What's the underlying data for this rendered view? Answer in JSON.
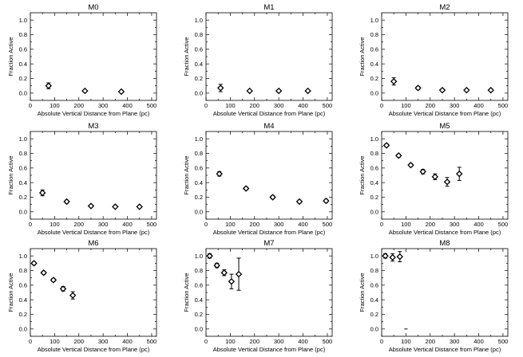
{
  "chart_data": [
    {
      "type": "scatter",
      "title": "M0",
      "xlabel": "Absolute Vertical Distance from Plane (pc)",
      "ylabel": "Fraction Active",
      "xlim": [
        0,
        520
      ],
      "ylim": [
        -0.1,
        1.1
      ],
      "xticks": [
        0,
        100,
        200,
        300,
        400,
        500
      ],
      "yticks": [
        0.0,
        0.2,
        0.4,
        0.6,
        0.8,
        1.0
      ],
      "x": [
        75,
        225,
        375
      ],
      "y": [
        0.1,
        0.03,
        0.02
      ],
      "yerr": [
        0.04,
        0.01,
        0.01
      ]
    },
    {
      "type": "scatter",
      "title": "M1",
      "xlabel": "Absolute Vertical Distance from Plane (pc)",
      "ylabel": "Fraction Active",
      "xlim": [
        0,
        520
      ],
      "ylim": [
        -0.1,
        1.1
      ],
      "xticks": [
        0,
        100,
        200,
        300,
        400,
        500
      ],
      "yticks": [
        0.0,
        0.2,
        0.4,
        0.6,
        0.8,
        1.0
      ],
      "x": [
        60,
        180,
        300,
        420
      ],
      "y": [
        0.07,
        0.03,
        0.03,
        0.03
      ],
      "yerr": [
        0.05,
        0.01,
        0.01,
        0.01
      ]
    },
    {
      "type": "scatter",
      "title": "M2",
      "xlabel": "Absolute Vertical Distance from Plane (pc)",
      "ylabel": "Fraction Active",
      "xlim": [
        0,
        520
      ],
      "ylim": [
        -0.1,
        1.1
      ],
      "xticks": [
        0,
        100,
        200,
        300,
        400,
        500
      ],
      "yticks": [
        0.0,
        0.2,
        0.4,
        0.6,
        0.8,
        1.0
      ],
      "x": [
        50,
        150,
        250,
        350,
        450
      ],
      "y": [
        0.16,
        0.07,
        0.04,
        0.04,
        0.04
      ],
      "yerr": [
        0.05,
        0.02,
        0.01,
        0.01,
        0.01
      ]
    },
    {
      "type": "scatter",
      "title": "M3",
      "xlabel": "Absolute Vertical Distance from Plane (pc)",
      "ylabel": "Fraction Active",
      "xlim": [
        0,
        520
      ],
      "ylim": [
        -0.1,
        1.1
      ],
      "xticks": [
        0,
        100,
        200,
        300,
        400,
        500
      ],
      "yticks": [
        0.0,
        0.2,
        0.4,
        0.6,
        0.8,
        1.0
      ],
      "x": [
        50,
        150,
        250,
        350,
        450
      ],
      "y": [
        0.26,
        0.14,
        0.08,
        0.07,
        0.07
      ],
      "yerr": [
        0.04,
        0.02,
        0.01,
        0.01,
        0.01
      ]
    },
    {
      "type": "scatter",
      "title": "M4",
      "xlabel": "Absolute Vertical Distance from Plane (pc)",
      "ylabel": "Fraction Active",
      "xlim": [
        0,
        520
      ],
      "ylim": [
        -0.1,
        1.1
      ],
      "xticks": [
        0,
        100,
        200,
        300,
        400,
        500
      ],
      "yticks": [
        0.0,
        0.2,
        0.4,
        0.6,
        0.8,
        1.0
      ],
      "x": [
        55,
        165,
        275,
        385,
        495
      ],
      "y": [
        0.52,
        0.32,
        0.2,
        0.14,
        0.15
      ],
      "yerr": [
        0.03,
        0.02,
        0.02,
        0.02,
        0.02
      ]
    },
    {
      "type": "scatter",
      "title": "M5",
      "xlabel": "Absolute Vertical Distance from Plane (pc)",
      "ylabel": "Fraction Active",
      "xlim": [
        0,
        520
      ],
      "ylim": [
        -0.1,
        1.1
      ],
      "xticks": [
        0,
        100,
        200,
        300,
        400,
        500
      ],
      "yticks": [
        0.0,
        0.2,
        0.4,
        0.6,
        0.8,
        1.0
      ],
      "x": [
        20,
        70,
        120,
        170,
        220,
        270,
        320
      ],
      "y": [
        0.91,
        0.77,
        0.64,
        0.55,
        0.48,
        0.41,
        0.52
      ],
      "yerr": [
        0.02,
        0.02,
        0.02,
        0.03,
        0.04,
        0.06,
        0.09
      ]
    },
    {
      "type": "scatter",
      "title": "M6",
      "xlabel": "Absolute Vertical Distance from Plane (pc)",
      "ylabel": "Fraction Active",
      "xlim": [
        0,
        520
      ],
      "ylim": [
        -0.1,
        1.1
      ],
      "xticks": [
        0,
        100,
        200,
        300,
        400,
        500
      ],
      "yticks": [
        0.0,
        0.2,
        0.4,
        0.6,
        0.8,
        1.0
      ],
      "x": [
        15,
        55,
        95,
        135,
        175
      ],
      "y": [
        0.9,
        0.77,
        0.67,
        0.55,
        0.46
      ],
      "yerr": [
        0.02,
        0.02,
        0.02,
        0.03,
        0.05
      ]
    },
    {
      "type": "scatter",
      "title": "M7",
      "xlabel": "Absolute Vertical Distance from Plane (pc)",
      "ylabel": "Fraction Active",
      "xlim": [
        0,
        520
      ],
      "ylim": [
        -0.1,
        1.1
      ],
      "xticks": [
        0,
        100,
        200,
        300,
        400,
        500
      ],
      "yticks": [
        0.0,
        0.2,
        0.4,
        0.6,
        0.8,
        1.0
      ],
      "x": [
        15,
        45,
        75,
        105,
        135
      ],
      "y": [
        1.0,
        0.87,
        0.77,
        0.65,
        0.75
      ],
      "yerr": [
        0.03,
        0.03,
        0.04,
        0.1,
        0.22
      ]
    },
    {
      "type": "scatter",
      "title": "M8",
      "xlabel": "Absolute Vertical Distance from Plane (pc)",
      "ylabel": "Fraction Active",
      "xlim": [
        0,
        520
      ],
      "ylim": [
        -0.1,
        1.1
      ],
      "xticks": [
        0,
        100,
        200,
        300,
        400,
        500
      ],
      "yticks": [
        0.0,
        0.2,
        0.4,
        0.6,
        0.8,
        1.0
      ],
      "x": [
        15,
        45,
        75
      ],
      "y": [
        1.0,
        0.98,
        0.99
      ],
      "yerr": [
        0.03,
        0.05,
        0.07
      ],
      "extra_marks": [
        {
          "x": 100,
          "y": 0.0
        }
      ]
    }
  ]
}
